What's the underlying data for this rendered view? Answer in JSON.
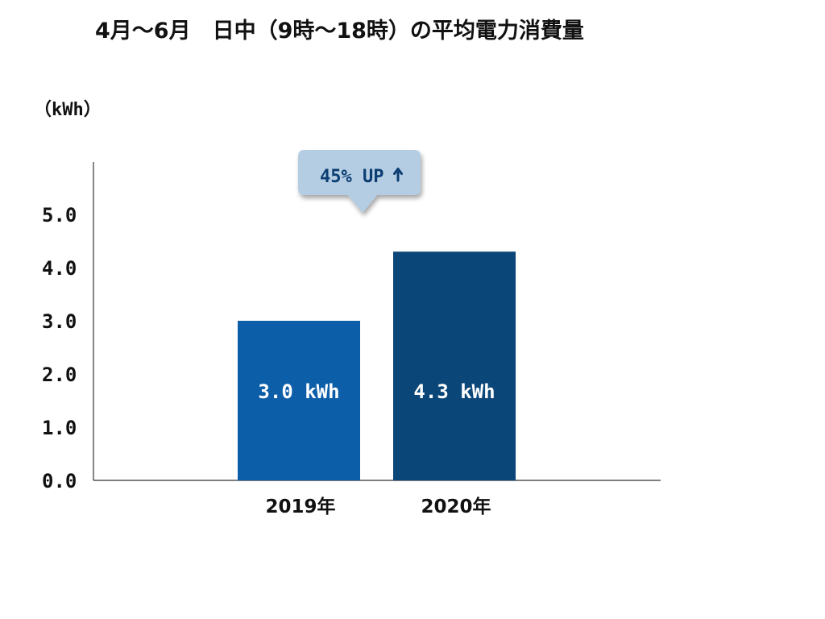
{
  "chart_data": {
    "type": "bar",
    "title": "4月～6月　日中（9時～18時）の平均電力消費量",
    "ylabel": "（kWh）",
    "xlabel": "",
    "categories": [
      "2019年",
      "2020年"
    ],
    "values": [
      3.0,
      4.3
    ],
    "value_labels": [
      "3.0 kWh",
      "4.3 kWh"
    ],
    "bar_colors": [
      "#0d5ea9",
      "#0b4678"
    ],
    "yticks": [
      "0.0",
      "1.0",
      "2.0",
      "3.0",
      "4.0",
      "5.0"
    ],
    "ylim": [
      0,
      6
    ],
    "grid": false,
    "callout": {
      "text": "45% UP",
      "icon": "up-arrow-icon",
      "background": "#b4cde3",
      "text_color": "#0b3d72"
    }
  }
}
